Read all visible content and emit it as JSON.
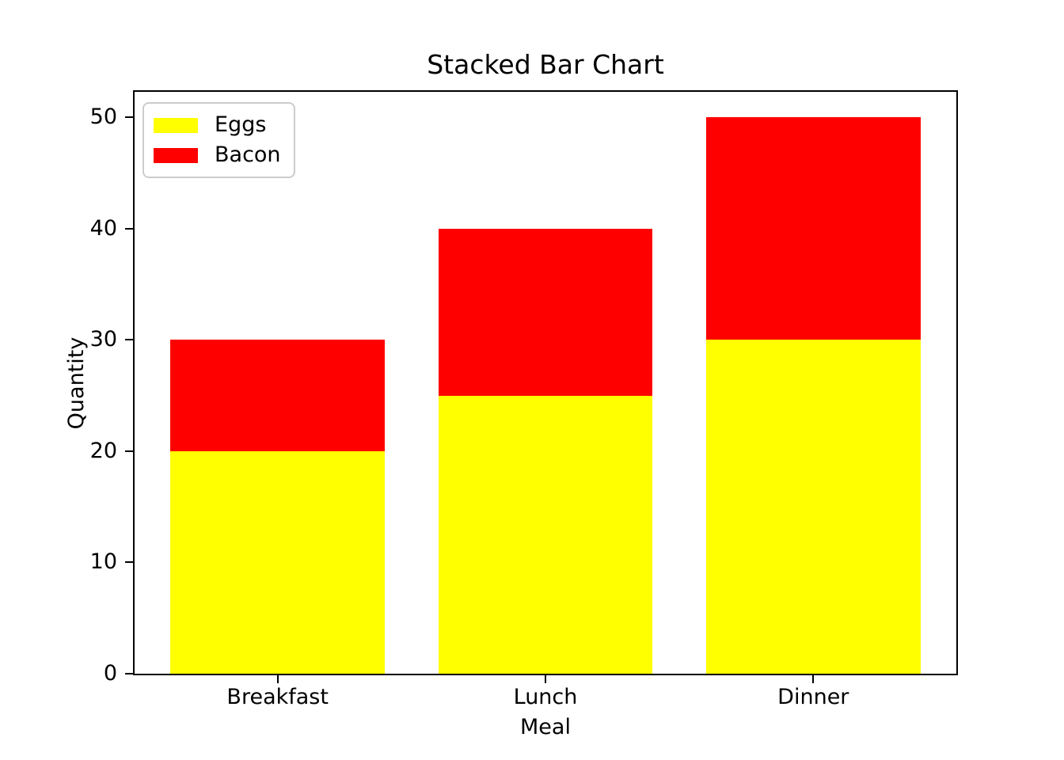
{
  "chart_data": {
    "type": "bar",
    "stacked": true,
    "title": "Stacked Bar Chart",
    "xlabel": "Meal",
    "ylabel": "Quantity",
    "categories": [
      "Breakfast",
      "Lunch",
      "Dinner"
    ],
    "series": [
      {
        "name": "Eggs",
        "color": "#ffff00",
        "values": [
          20,
          25,
          30
        ]
      },
      {
        "name": "Bacon",
        "color": "#ff0000",
        "values": [
          10,
          15,
          20
        ]
      }
    ],
    "totals": [
      30,
      40,
      50
    ],
    "yticks": [
      0,
      10,
      20,
      30,
      40,
      50
    ],
    "ylim": [
      0,
      52.5
    ],
    "grid": false,
    "legend_position": "upper left",
    "background_color": "#ffffff",
    "text_color": "#000000"
  }
}
